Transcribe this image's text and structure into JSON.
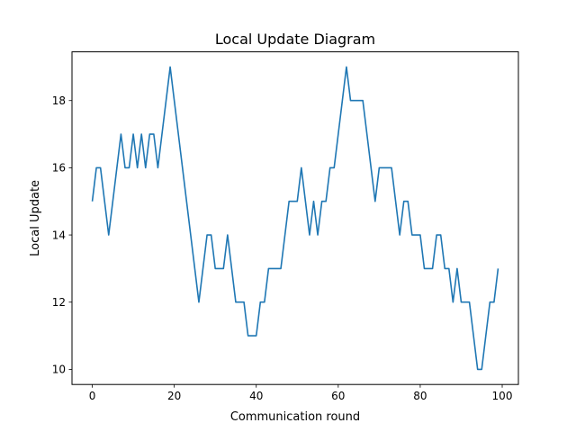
{
  "chart_data": {
    "type": "line",
    "title": "Local Update Diagram",
    "xlabel": "Communication round",
    "ylabel": "Local Update",
    "xlim": [
      -4.95,
      103.95
    ],
    "ylim": [
      9.55,
      19.45
    ],
    "xticks": [
      0,
      20,
      40,
      60,
      80,
      100
    ],
    "yticks": [
      10,
      12,
      14,
      16,
      18
    ],
    "grid": false,
    "line_color": "#1f77b4",
    "x": [
      0,
      1,
      2,
      3,
      4,
      5,
      6,
      7,
      8,
      9,
      10,
      11,
      12,
      13,
      14,
      15,
      16,
      17,
      18,
      19,
      20,
      21,
      22,
      23,
      24,
      25,
      26,
      27,
      28,
      29,
      30,
      31,
      32,
      33,
      34,
      35,
      36,
      37,
      38,
      39,
      40,
      41,
      42,
      43,
      44,
      45,
      46,
      47,
      48,
      49,
      50,
      51,
      52,
      53,
      54,
      55,
      56,
      57,
      58,
      59,
      60,
      61,
      62,
      63,
      64,
      65,
      66,
      67,
      68,
      69,
      70,
      71,
      72,
      73,
      74,
      75,
      76,
      77,
      78,
      79,
      80,
      81,
      82,
      83,
      84,
      85,
      86,
      87,
      88,
      89,
      90,
      91,
      92,
      93,
      94,
      95,
      96,
      97,
      98,
      99
    ],
    "y": [
      15,
      16,
      16,
      15,
      14,
      15,
      16,
      17,
      16,
      16,
      17,
      16,
      17,
      16,
      17,
      17,
      16,
      17,
      18,
      19,
      18,
      17,
      16,
      15,
      14,
      13,
      12,
      13,
      14,
      14,
      13,
      13,
      13,
      14,
      13,
      12,
      12,
      12,
      11,
      11,
      11,
      12,
      12,
      13,
      13,
      13,
      13,
      14,
      15,
      15,
      15,
      16,
      15,
      14,
      15,
      14,
      15,
      15,
      16,
      16,
      17,
      18,
      19,
      18,
      18,
      18,
      18,
      17,
      16,
      15,
      16,
      16,
      16,
      16,
      15,
      14,
      15,
      15,
      14,
      14,
      14,
      13,
      13,
      13,
      14,
      14,
      13,
      13,
      12,
      13,
      12,
      12,
      12,
      11,
      10,
      10,
      11,
      12,
      12,
      13
    ]
  }
}
